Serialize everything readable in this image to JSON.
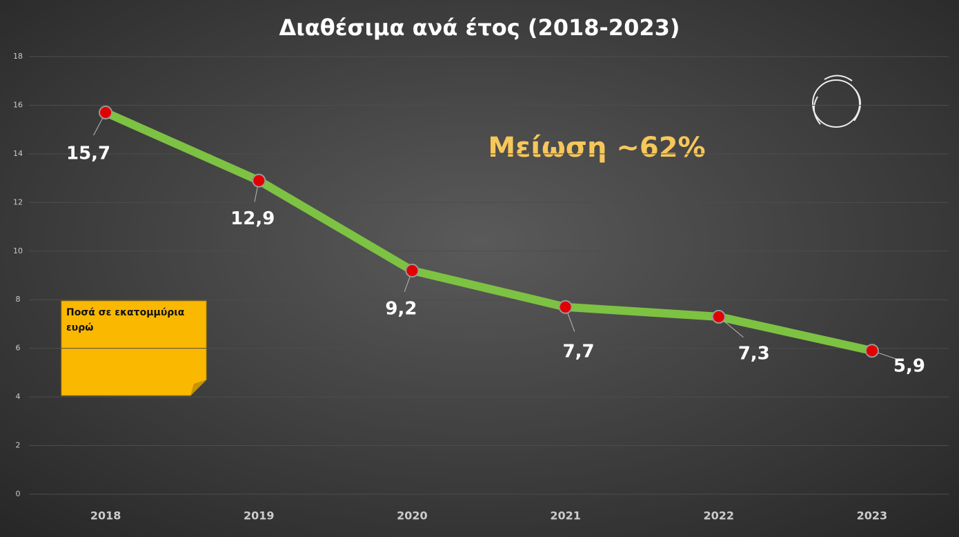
{
  "chart_data": {
    "type": "line",
    "title": "Διαθέσιμα ανά έτος (2018-2023)",
    "categories": [
      "2018",
      "2019",
      "2020",
      "2021",
      "2022",
      "2023"
    ],
    "values": [
      15.7,
      12.9,
      9.2,
      7.7,
      7.3,
      5.9
    ],
    "value_labels": [
      "15,7",
      "12,9",
      "9,2",
      "7,7",
      "7,3",
      "5,9"
    ],
    "color": "#7dc242",
    "marker_color": "#e00000",
    "ylim": [
      0,
      18
    ],
    "yticks": [
      0,
      2,
      4,
      6,
      8,
      10,
      12,
      14,
      16,
      18
    ],
    "grid": true,
    "annotation": "Μείωση ~62%",
    "note": "Ποσά σε εκατομμύρια ευρώ"
  }
}
